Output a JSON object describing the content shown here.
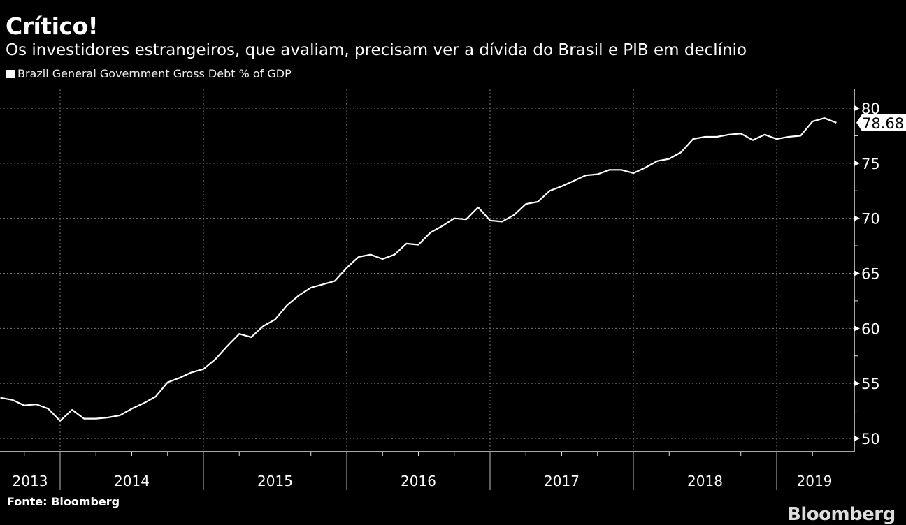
{
  "header": {
    "title": "Crítico!",
    "subtitle": "Os investidores estrangeiros, que avaliam, precisam ver a dívida do Brasil e PIB em declínio"
  },
  "footer": {
    "source": "Fonte: Bloomberg",
    "logo": "Bloomberg"
  },
  "colors": {
    "background": "#000000",
    "line": "#ffffff",
    "grid": "#777777",
    "axis": "#dddddd"
  },
  "chart_data": {
    "type": "line",
    "title": "Crítico!",
    "subtitle": "Os investidores estrangeiros, que avaliam, precisam ver a dívida do Brasil e PIB em declínio",
    "legend": [
      "Brazil General Government Gross Debt % of GDP"
    ],
    "legend_position": "top-left",
    "xlabel": "",
    "ylabel": "",
    "ylim": [
      50,
      80
    ],
    "yticks": [
      50,
      55,
      60,
      65,
      70,
      75,
      80
    ],
    "y_axis_side": "right",
    "grid": true,
    "x_start": "2013-08",
    "x_frequency": "monthly",
    "year_labels": [
      "2013",
      "2014",
      "2015",
      "2016",
      "2017",
      "2018",
      "2019"
    ],
    "last_value_label": "78.68",
    "series": [
      {
        "name": "Brazil General Government Gross Debt % of GDP",
        "values": [
          53.7,
          53.5,
          53.0,
          53.1,
          52.7,
          51.6,
          52.6,
          51.8,
          51.8,
          51.9,
          52.1,
          52.7,
          53.2,
          53.8,
          55.1,
          55.5,
          56.0,
          56.3,
          57.2,
          58.4,
          59.5,
          59.2,
          60.2,
          60.8,
          62.1,
          63.0,
          63.7,
          64.0,
          64.3,
          65.5,
          66.5,
          66.7,
          66.3,
          66.7,
          67.7,
          67.6,
          68.7,
          69.3,
          70.0,
          69.9,
          71.0,
          69.8,
          69.7,
          70.3,
          71.3,
          71.5,
          72.5,
          72.9,
          73.4,
          73.9,
          74.0,
          74.4,
          74.4,
          74.1,
          74.6,
          75.2,
          75.4,
          76.0,
          77.2,
          77.4,
          77.4,
          77.6,
          77.7,
          77.1,
          77.6,
          77.2,
          77.4,
          77.5,
          78.8,
          79.1,
          78.68
        ]
      }
    ]
  }
}
